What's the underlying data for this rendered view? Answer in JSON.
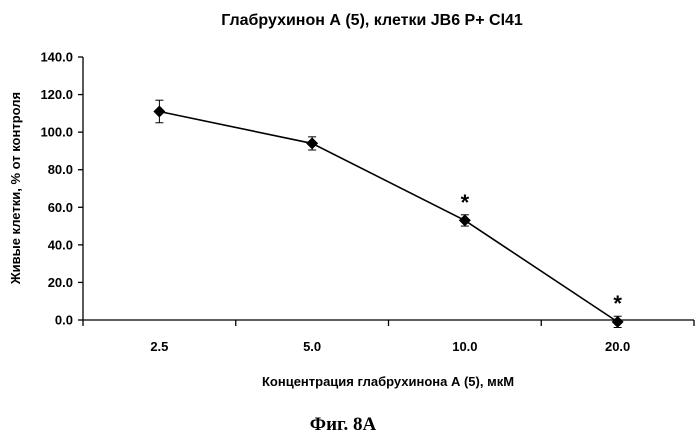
{
  "chart_data": {
    "type": "line",
    "title": "Глабрухинон А (5), клетки JB6 P+ Cl41",
    "xlabel": "Концентрация глабрухинона А (5), мкМ",
    "ylabel": "Живые клетки, % от контроля",
    "categories": [
      "2.5",
      "5.0",
      "10.0",
      "20.0"
    ],
    "series": [
      {
        "values": [
          111.0,
          94.0,
          53.0,
          -1.0
        ],
        "errors": [
          6.0,
          3.5,
          3.0,
          3.0
        ],
        "annotations": [
          "",
          "",
          "*",
          "*"
        ],
        "marker": "diamond",
        "color": "#000000"
      }
    ],
    "ylim": [
      0,
      140
    ],
    "yticks": [
      "0.0",
      "20.0",
      "40.0",
      "60.0",
      "80.0",
      "100.0",
      "120.0",
      "140.0"
    ],
    "grid": false,
    "legend": "none"
  },
  "caption": "Фиг. 8А"
}
